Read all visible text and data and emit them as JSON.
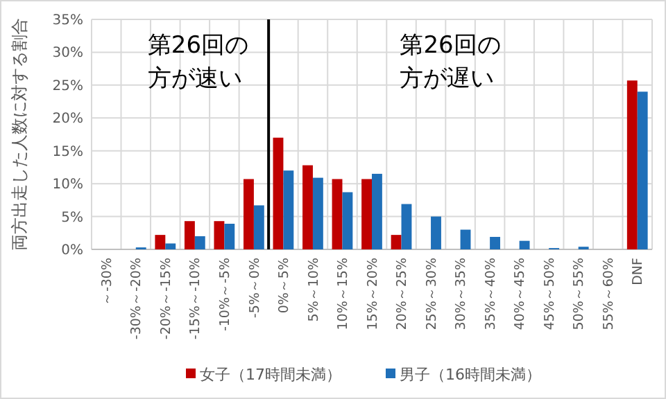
{
  "chart_data": {
    "type": "bar",
    "ylabel": "両方出走した人数に対する割合",
    "categories": [
      "～-30%",
      "-30%～-20%",
      "-20%～-15%",
      "-15%～-10%",
      "-10%～-5%",
      "-5%～0%",
      "0%～5%",
      "5%～10%",
      "10%～15%",
      "15%～20%",
      "20%～25%",
      "25%～30%",
      "30%～35%",
      "35%～40%",
      "40%～45%",
      "45%～50%",
      "50%～55%",
      "55%～60%",
      "DNF"
    ],
    "series": [
      {
        "name": "女子（17時間未満）",
        "color": "#c00000",
        "values": [
          0,
          0,
          2.2,
          4.3,
          4.3,
          10.7,
          17,
          12.8,
          10.7,
          10.7,
          2.2,
          0,
          0,
          0,
          0,
          0,
          0,
          0,
          25.7
        ]
      },
      {
        "name": "男子（16時間未満）",
        "color": "#1f6fb8",
        "values": [
          0,
          0.3,
          0.9,
          2,
          3.9,
          6.7,
          12,
          10.9,
          8.7,
          11.5,
          6.9,
          5,
          3,
          1.9,
          1.3,
          0.2,
          0.4,
          0,
          24
        ]
      }
    ],
    "ylim": [
      0,
      35
    ],
    "yticks": [
      {
        "value": 0,
        "label": "0%"
      },
      {
        "value": 5,
        "label": "5%"
      },
      {
        "value": 10,
        "label": "10%"
      },
      {
        "value": 15,
        "label": "15%"
      },
      {
        "value": 20,
        "label": "20%"
      },
      {
        "value": 25,
        "label": "25%"
      },
      {
        "value": 30,
        "label": "30%"
      },
      {
        "value": 35,
        "label": "35%"
      }
    ],
    "grid": true,
    "legend": "bottom",
    "ref_lines": [
      {
        "axis": "x",
        "value": "0%～5%",
        "color": "#000000"
      }
    ],
    "annotations": [
      "第26回の方が速い",
      "第26回の方が遅い"
    ]
  }
}
